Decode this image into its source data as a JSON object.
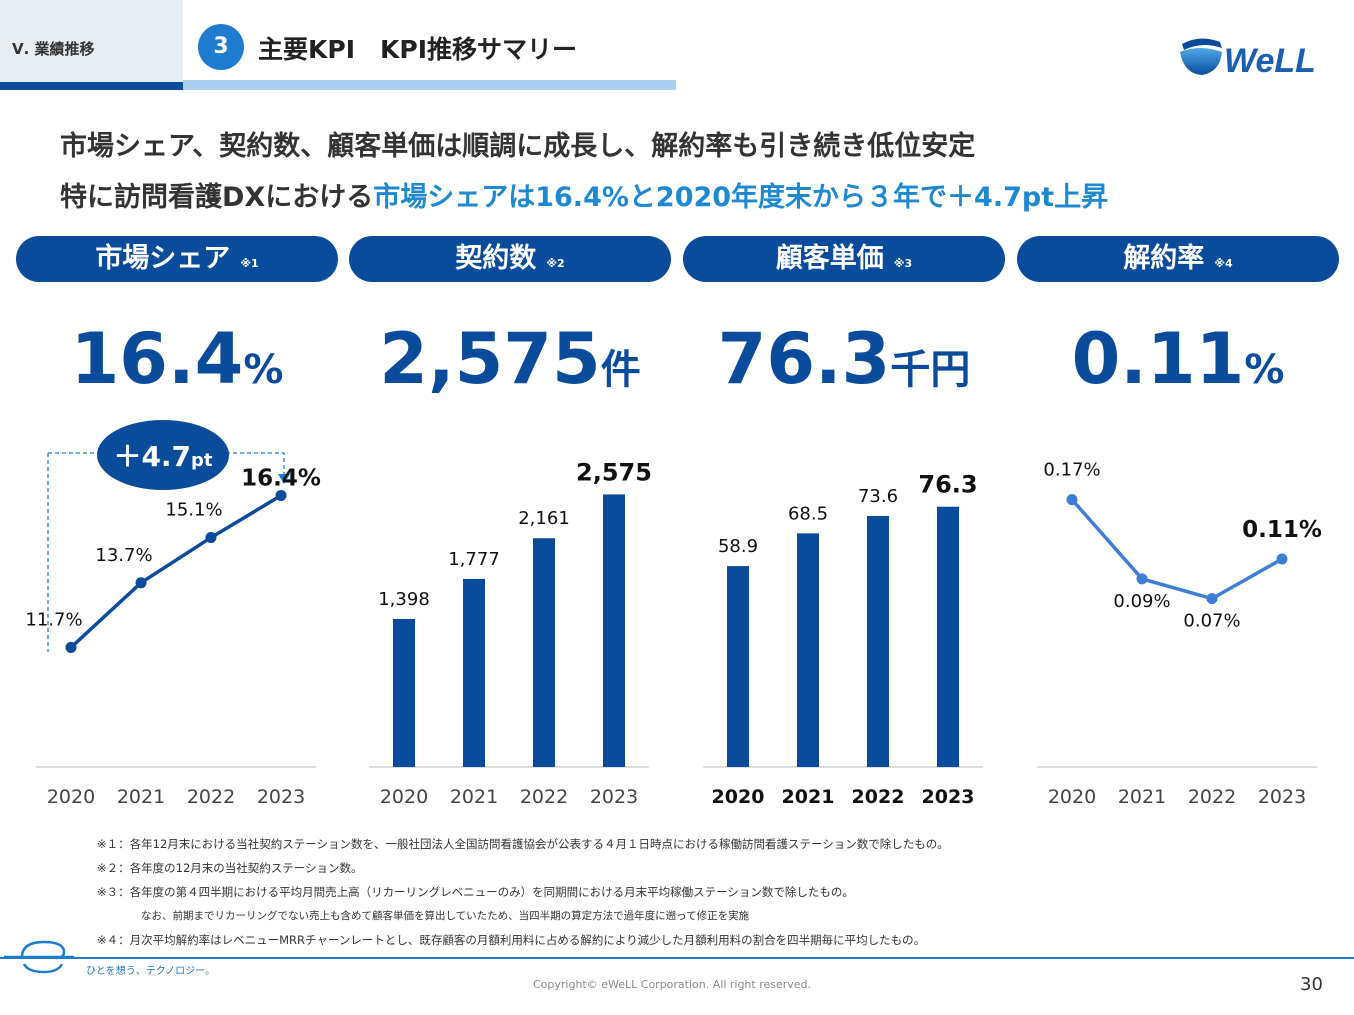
{
  "header": {
    "section_label": "Ⅴ. 業績推移",
    "step_number": "3",
    "title": "主要KPI　KPI推移サマリー",
    "logo_text": "eWeLL"
  },
  "headline": {
    "line1": "市場シェア、契約数、顧客単価は順調に成長し、解約率も引き続き低位安定",
    "line2_prefix": "特に訪問看護DXにおける",
    "line2_highlight": "市場シェアは16.4%と2020年度末から３年で＋4.7pt上昇"
  },
  "kpis": [
    {
      "label": "市場シェア",
      "note": "※1",
      "value": "16.4",
      "unit": "%"
    },
    {
      "label": "契約数",
      "note": "※2",
      "value": "2,575",
      "unit": "件"
    },
    {
      "label": "顧客単価",
      "note": "※3",
      "value": "76.3",
      "unit": "千円"
    },
    {
      "label": "解約率",
      "note": "※4",
      "value": "0.11",
      "unit": "%"
    }
  ],
  "callout": {
    "main": "＋4.7",
    "suffix": "pt"
  },
  "chart_data": [
    {
      "type": "line",
      "categories": [
        "2020",
        "2021",
        "2022",
        "2023"
      ],
      "values": [
        11.7,
        13.7,
        15.1,
        16.4
      ],
      "labels": [
        "11.7%",
        "13.7%",
        "15.1%",
        "16.4%"
      ],
      "ylim": [
        8,
        17.5
      ],
      "color": "#0b4b9c"
    },
    {
      "type": "bar",
      "categories": [
        "2020",
        "2021",
        "2022",
        "2023"
      ],
      "values": [
        1398,
        1777,
        2161,
        2575
      ],
      "labels": [
        "1,398",
        "1,777",
        "2,161",
        "2,575"
      ],
      "ylim": [
        0,
        2900
      ],
      "color": "#0b4b9c"
    },
    {
      "type": "bar",
      "categories": [
        "2020",
        "2021",
        "2022",
        "2023"
      ],
      "values": [
        58.9,
        68.5,
        73.6,
        76.3
      ],
      "labels": [
        "58.9",
        "68.5",
        "73.6",
        "76.3"
      ],
      "ylim": [
        0,
        90
      ],
      "color": "#0b4b9c"
    },
    {
      "type": "line",
      "categories": [
        "2020",
        "2021",
        "2022",
        "2023"
      ],
      "values": [
        0.17,
        0.09,
        0.07,
        0.11
      ],
      "labels": [
        "0.17%",
        "0.09%",
        "0.07%",
        "0.11%"
      ],
      "ylim": [
        -0.1,
        0.21
      ],
      "color": "#3d7fd6"
    }
  ],
  "footnotes": [
    "※１：各年12月末における当社契約ステーション数を、一般社団法人全国訪問看護協会が公表する４月１日時点における稼働訪問看護ステーション数で除したもの。",
    "※２：各年度の12月末の当社契約ステーション数。",
    "※３：各年度の第４四半期における平均月間売上高（リカーリングレベニューのみ）を同期間における月末平均稼働ステーション数で除したもの。",
    "なお、前期までリカーリングでない売上も含めて顧客単価を算出していたため、当四半期の算定方法で過年度に遡って修正を実施",
    "※４：月次平均解約率はレベニューMRRチャーンレートとし、既存顧客の月額利用料に占める解約により減少した月額利用料の割合を四半期毎に平均したもの。"
  ],
  "footer": {
    "tagline": "ひとを想う、テクノロジー。",
    "copyright": "Copyright© eWeLL Corporation. All right reserved.",
    "page_number": "30"
  },
  "colors": {
    "navy": "#0b4b9c",
    "accent": "#1e88d0",
    "light_blue": "#a9d0ee"
  }
}
